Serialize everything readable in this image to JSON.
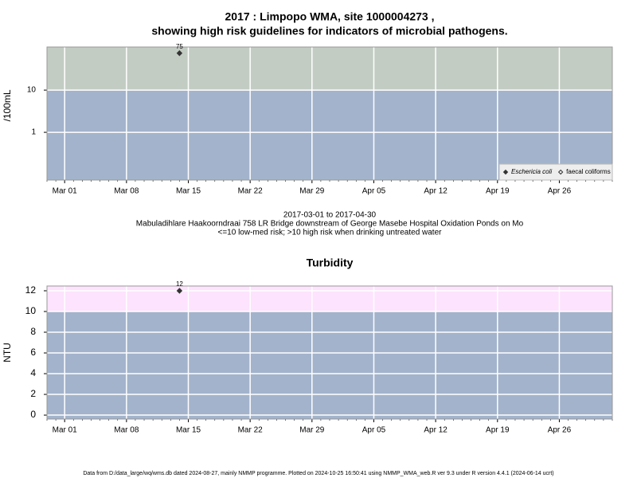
{
  "chart_data": [
    {
      "type": "scatter",
      "title_lines": [
        "2017 : Limpopo WMA, site 1000004273 ,",
        "showing high risk guidelines for indicators of microbial pathogens."
      ],
      "y_label": "/100mL",
      "notes": [
        "2017-03-01 to 2017-04-30",
        "Mabuladihlare Haakoorndraai 758 LR Bridge downstream of George Masebe Hospital Oxidation Ponds on Mo",
        "<=10 low-med risk; >10 high risk when drinking untreated water"
      ],
      "x": [
        "2017-03-14"
      ],
      "series": [
        {
          "name": "Eschericia coli",
          "color": "#333333",
          "marker": "filled",
          "values": [
            75
          ]
        },
        {
          "name": "faecal coliforms",
          "color": "#333333",
          "marker": "open",
          "values": [
            null
          ]
        }
      ],
      "log_y": true,
      "ylim": [
        0.074,
        105
      ],
      "yticks": [
        1,
        10
      ],
      "xlim": [
        "2017-02-27",
        "2017-05-02"
      ],
      "xticks": [
        {
          "value": "2017-03-01",
          "label": "Mar 01"
        },
        {
          "value": "2017-03-08",
          "label": "Mar 08"
        },
        {
          "value": "2017-03-15",
          "label": "Mar 15"
        },
        {
          "value": "2017-03-22",
          "label": "Mar 22"
        },
        {
          "value": "2017-03-29",
          "label": "Mar 29"
        },
        {
          "value": "2017-04-05",
          "label": "Apr 05"
        },
        {
          "value": "2017-04-12",
          "label": "Apr 12"
        },
        {
          "value": "2017-04-19",
          "label": "Apr 19"
        },
        {
          "value": "2017-04-26",
          "label": "Apr 26"
        }
      ],
      "threshold": 10,
      "color_above": "#c3ccc3",
      "color_below": "#a3b3cc",
      "grid": true,
      "legend": "bottom-right"
    },
    {
      "type": "scatter",
      "title_lines": [
        "Turbidity"
      ],
      "y_label": "NTU",
      "x": [
        "2017-03-14"
      ],
      "series": [
        {
          "name": "Turbidity",
          "color": "#333333",
          "marker": "filled",
          "values": [
            12
          ]
        }
      ],
      "log_y": false,
      "ylim": [
        -0.38,
        12.46
      ],
      "yticks": [
        0,
        2,
        4,
        6,
        8,
        10,
        12
      ],
      "xlim": [
        "2017-02-27",
        "2017-05-02"
      ],
      "xticks": [
        {
          "value": "2017-03-01",
          "label": "Mar 01"
        },
        {
          "value": "2017-03-08",
          "label": "Mar 08"
        },
        {
          "value": "2017-03-15",
          "label": "Mar 15"
        },
        {
          "value": "2017-03-22",
          "label": "Mar 22"
        },
        {
          "value": "2017-03-29",
          "label": "Mar 29"
        },
        {
          "value": "2017-04-05",
          "label": "Apr 05"
        },
        {
          "value": "2017-04-12",
          "label": "Apr 12"
        },
        {
          "value": "2017-04-19",
          "label": "Apr 19"
        },
        {
          "value": "2017-04-26",
          "label": "Apr 26"
        }
      ],
      "threshold": 10,
      "color_above": "#fde3fd",
      "color_below": "#a3b3cc",
      "grid": true
    }
  ],
  "footer": "Data from D:/data_large/wq/wms.db dated 2024-08-27, mainly NMMP programme. Plotted on 2024-10-25 16:50:41 using NMMP_WMA_web.R ver 9.3 under R version 4.4.1 (2024-06-14 ucrt)"
}
